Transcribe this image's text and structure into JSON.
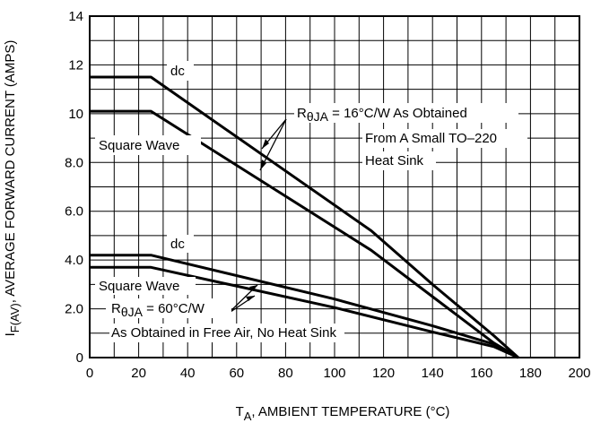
{
  "chart_data": {
    "type": "line",
    "xlabel": "T",
    "xlabel_sub": "A",
    "xlabel_rest": ", AMBIENT TEMPERATURE (°C)",
    "ylabel": "I",
    "ylabel_sub": "F(AV)",
    "ylabel_rest": ", AVERAGE FORWARD CURRENT (AMPS)",
    "xlim": [
      0,
      200
    ],
    "ylim": [
      0,
      14
    ],
    "x_ticks": [
      "0",
      "20",
      "40",
      "60",
      "80",
      "100",
      "120",
      "140",
      "160",
      "180",
      "200"
    ],
    "y_ticks": [
      "0",
      "2.0",
      "4.0",
      "6.0",
      "8.0",
      "10",
      "12",
      "14"
    ],
    "grid": true,
    "series": [
      {
        "name": "dc",
        "points": [
          [
            0,
            11.5
          ],
          [
            25,
            11.5
          ],
          [
            115,
            5.2
          ],
          [
            140,
            3.0
          ],
          [
            165,
            0.9
          ],
          [
            175,
            0
          ]
        ]
      },
      {
        "name": "Square Wave",
        "points": [
          [
            0,
            10.1
          ],
          [
            25,
            10.1
          ],
          [
            115,
            4.4
          ],
          [
            140,
            2.5
          ],
          [
            165,
            0.6
          ],
          [
            175,
            0
          ]
        ]
      },
      {
        "name": "dc",
        "points": [
          [
            0,
            4.2
          ],
          [
            25,
            4.2
          ],
          [
            100,
            2.4
          ],
          [
            140,
            1.3
          ],
          [
            165,
            0.55
          ],
          [
            175,
            0
          ]
        ]
      },
      {
        "name": "Square Wave",
        "points": [
          [
            0,
            3.7
          ],
          [
            25,
            3.7
          ],
          [
            100,
            2.05
          ],
          [
            140,
            1.05
          ],
          [
            165,
            0.45
          ],
          [
            175,
            0
          ]
        ]
      }
    ],
    "annotations": {
      "dc_upper": "dc",
      "square_upper": "Square Wave",
      "dc_lower": "dc",
      "square_lower": "Square Wave",
      "r_upper_sym": "R",
      "r_upper_sub": "θJA",
      "r_upper_val": " = 16°C/W As Obtained",
      "r_upper_line2": "From A Small TO–220",
      "r_upper_line3": "Heat Sink",
      "r_lower_sym": "R",
      "r_lower_sub": "θJA",
      "r_lower_val": " = 60°C/W",
      "r_lower_line2": "As Obtained in Free Air, No Heat Sink"
    }
  }
}
